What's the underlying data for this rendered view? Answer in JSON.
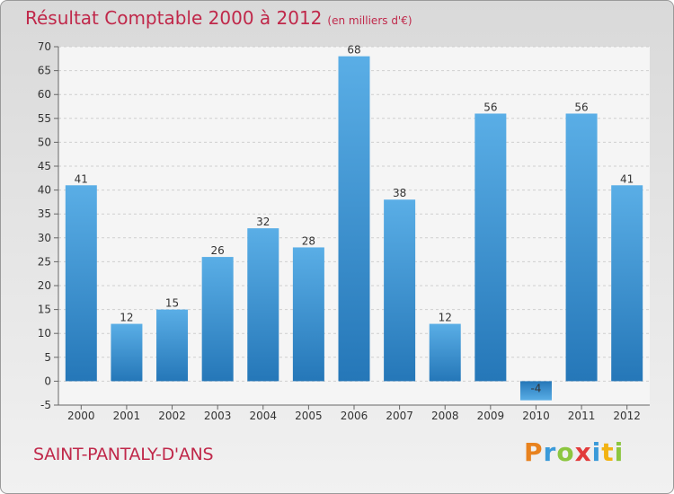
{
  "chart_data": {
    "type": "bar",
    "title": "Résultat Comptable 2000 à 2012",
    "subtitle": "(en milliers d'€)",
    "categories": [
      "2000",
      "2001",
      "2002",
      "2003",
      "2004",
      "2005",
      "2006",
      "2007",
      "2008",
      "2009",
      "2010",
      "2011",
      "2012"
    ],
    "values": [
      41,
      12,
      15,
      26,
      32,
      28,
      68,
      38,
      12,
      56,
      -4,
      56,
      41
    ],
    "data_labels": [
      "41",
      "12",
      "15",
      "26",
      "32",
      "28",
      "68",
      "38",
      "12",
      "56",
      "-4",
      "56",
      "41"
    ],
    "ylim": [
      -5,
      70
    ],
    "yticks": [
      "-5",
      "0",
      "5",
      "10",
      "15",
      "20",
      "25",
      "30",
      "35",
      "40",
      "45",
      "50",
      "55",
      "60",
      "65",
      "70"
    ],
    "grid": true,
    "xlabel": "",
    "ylabel": "",
    "bar_color": "#3f95d6"
  },
  "footer": {
    "place": "SAINT-PANTALY-D'ANS",
    "brand_letters": [
      "P",
      "r",
      "o",
      "x",
      "i",
      "t",
      "i"
    ],
    "brand_colors": [
      "#e8821e",
      "#3a9ad9",
      "#8cc63f",
      "#e23b3b",
      "#3a9ad9",
      "#f2b313",
      "#8cc63f"
    ]
  },
  "colors": {
    "accent": "#c0284a"
  }
}
